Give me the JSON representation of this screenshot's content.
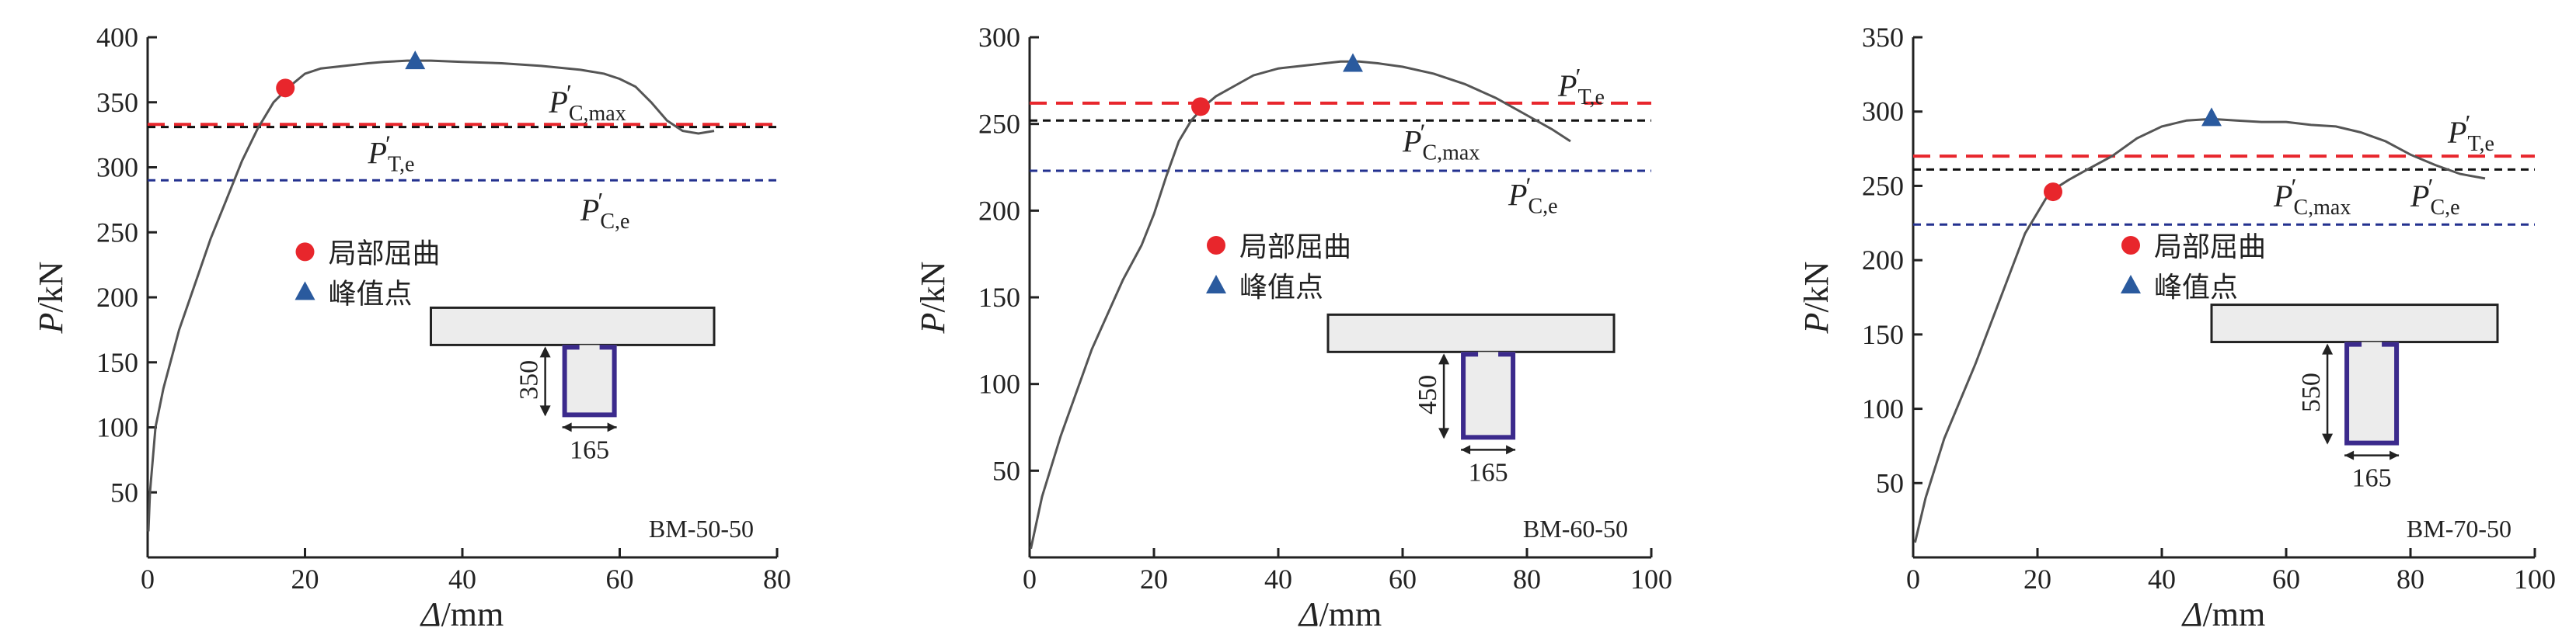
{
  "colors": {
    "curve": "#555555",
    "axis": "#222222",
    "red_line": "#e8262c",
    "black_dash": "#111111",
    "blue_dash": "#23318f",
    "local_buckling": "#e8262c",
    "peak": "#2a5a9e",
    "section_fill": "#ececec",
    "steel": "#3b2a8c"
  },
  "legend": {
    "local_buckling": "局部屈曲",
    "peak": "峰值点"
  },
  "chart_data": [
    {
      "type": "line",
      "name": "BM-50-50",
      "xlabel_symbol": "Δ",
      "xlabel_unit": "/mm",
      "ylabel_symbol": "P",
      "ylabel_unit": "/kN",
      "xlim": [
        0,
        80
      ],
      "ylim": [
        0,
        400
      ],
      "x_ticks": [
        0,
        20,
        40,
        60,
        80
      ],
      "y_ticks": [
        50,
        100,
        150,
        200,
        250,
        300,
        350,
        400
      ],
      "grid": false,
      "series": [
        {
          "x": [
            0.1,
            0.3,
            1,
            2,
            4,
            6,
            8,
            10,
            12,
            14,
            16,
            18,
            20,
            22,
            25,
            28,
            30,
            33,
            34,
            36,
            40,
            45,
            50,
            55,
            58,
            60,
            62,
            64,
            66,
            68,
            70,
            72
          ],
          "y": [
            20,
            50,
            100,
            130,
            175,
            210,
            245,
            275,
            305,
            330,
            350,
            362,
            372,
            376,
            378,
            380,
            381,
            382,
            382,
            382,
            381,
            380,
            378,
            375,
            372,
            368,
            362,
            350,
            336,
            328,
            326,
            328
          ]
        }
      ],
      "hlines": [
        {
          "style": "red",
          "y": 333
        },
        {
          "style": "black",
          "y": 331
        },
        {
          "style": "blue",
          "y": 290
        }
      ],
      "hline_labels": [
        {
          "main": "P",
          "prime": "′",
          "sub": "C,max",
          "x": 51,
          "y": 342
        },
        {
          "main": "P",
          "prime": "′",
          "sub": "T,e",
          "x": 28,
          "y": 303
        },
        {
          "main": "P",
          "prime": "′",
          "sub": "C,e",
          "x": 55,
          "y": 259
        }
      ],
      "markers": {
        "local_buckling": {
          "x": 17.5,
          "y": 361
        },
        "peak": {
          "x": 34,
          "y": 382
        }
      },
      "legend_pos": {
        "x": 20,
        "y": 235
      },
      "section": {
        "depth_label": "350",
        "width_label": "165",
        "ratio": 350
      },
      "section_box": {
        "x1": 36,
        "x2": 72,
        "y_top": 192
      }
    },
    {
      "type": "line",
      "name": "BM-60-50",
      "xlabel_symbol": "Δ",
      "xlabel_unit": "/mm",
      "ylabel_symbol": "P",
      "ylabel_unit": "/kN",
      "xlim": [
        0,
        100
      ],
      "ylim": [
        0,
        300
      ],
      "x_ticks": [
        0,
        20,
        40,
        60,
        80,
        100
      ],
      "y_ticks": [
        50,
        100,
        150,
        200,
        250,
        300
      ],
      "grid": false,
      "series": [
        {
          "x": [
            0.2,
            2,
            5,
            10,
            15,
            18,
            20,
            22,
            24,
            26,
            28,
            30,
            33,
            36,
            40,
            45,
            50,
            53,
            56,
            60,
            65,
            70,
            75,
            80,
            84,
            87
          ],
          "y": [
            5,
            35,
            70,
            120,
            160,
            180,
            198,
            220,
            240,
            252,
            260,
            266,
            272,
            278,
            282,
            284,
            286,
            286,
            285,
            283,
            279,
            273,
            265,
            255,
            247,
            240
          ]
        }
      ],
      "hlines": [
        {
          "style": "red",
          "y": 262
        },
        {
          "style": "black",
          "y": 252
        },
        {
          "style": "blue",
          "y": 223
        }
      ],
      "hline_labels": [
        {
          "main": "P",
          "prime": "′",
          "sub": "T,e",
          "x": 85,
          "y": 266
        },
        {
          "main": "P",
          "prime": "′",
          "sub": "C,max",
          "x": 60,
          "y": 234
        },
        {
          "main": "P",
          "prime": "′",
          "sub": "C,e",
          "x": 77,
          "y": 203
        }
      ],
      "markers": {
        "local_buckling": {
          "x": 27.5,
          "y": 260
        },
        "peak": {
          "x": 52,
          "y": 285
        }
      },
      "legend_pos": {
        "x": 30,
        "y": 180
      },
      "section": {
        "depth_label": "450",
        "width_label": "165",
        "ratio": 450
      },
      "section_box": {
        "x1": 48,
        "x2": 94,
        "y_top": 140
      }
    },
    {
      "type": "line",
      "name": "BM-70-50",
      "xlabel_symbol": "Δ",
      "xlabel_unit": "/mm",
      "ylabel_symbol": "P",
      "ylabel_unit": "/kN",
      "xlim": [
        0,
        100
      ],
      "ylim": [
        0,
        350
      ],
      "x_ticks": [
        0,
        20,
        40,
        60,
        80,
        100
      ],
      "y_ticks": [
        50,
        100,
        150,
        200,
        250,
        300,
        350
      ],
      "grid": false,
      "series": [
        {
          "x": [
            0.3,
            2,
            5,
            10,
            15,
            18,
            20,
            22,
            25,
            28,
            32,
            36,
            40,
            44,
            48,
            52,
            56,
            60,
            64,
            68,
            72,
            76,
            80,
            84,
            88,
            92
          ],
          "y": [
            10,
            40,
            80,
            130,
            185,
            218,
            232,
            246,
            254,
            261,
            270,
            282,
            290,
            294,
            295,
            294,
            293,
            293,
            291,
            290,
            286,
            280,
            271,
            264,
            258,
            255
          ]
        }
      ],
      "hlines": [
        {
          "style": "red",
          "y": 270
        },
        {
          "style": "black",
          "y": 261
        },
        {
          "style": "blue",
          "y": 224
        }
      ],
      "hline_labels": [
        {
          "main": "P",
          "prime": "′",
          "sub": "T,e",
          "x": 86,
          "y": 279
        },
        {
          "main": "P",
          "prime": "′",
          "sub": "C,max",
          "x": 58,
          "y": 236
        },
        {
          "main": "P",
          "prime": "′",
          "sub": "C,e",
          "x": 80,
          "y": 236
        }
      ],
      "markers": {
        "local_buckling": {
          "x": 22.5,
          "y": 246
        },
        "peak": {
          "x": 48,
          "y": 296
        }
      },
      "legend_pos": {
        "x": 35,
        "y": 210
      },
      "section": {
        "depth_label": "550",
        "width_label": "165",
        "ratio": 550
      },
      "section_box": {
        "x1": 48,
        "x2": 94,
        "y_top": 170
      }
    }
  ]
}
